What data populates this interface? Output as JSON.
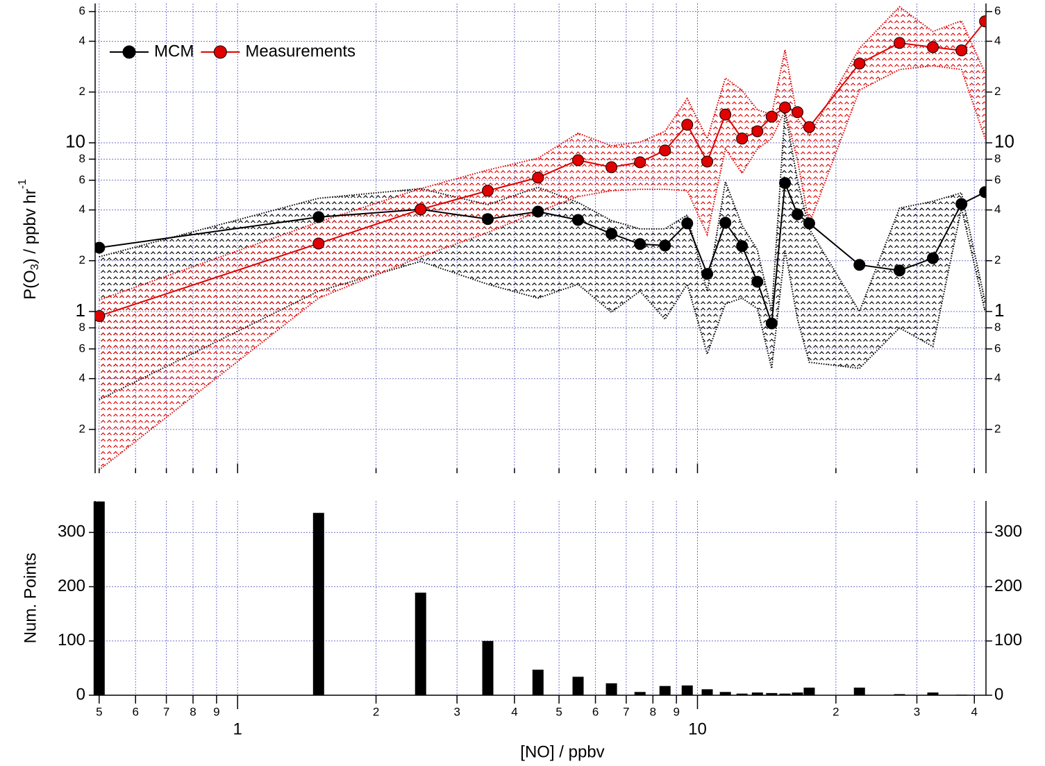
{
  "chart_data": [
    {
      "type": "line",
      "y_label_parts": [
        "P(O",
        "3",
        ") / ppbv hr",
        "-1"
      ],
      "log_x": true,
      "log_y": true,
      "grid": true,
      "legend": "top-left",
      "xlim": [
        0.49,
        42.4
      ],
      "ylim": [
        0.11,
        67
      ],
      "yticks": [
        {
          "value": 0.2,
          "label": "2"
        },
        {
          "value": 0.4,
          "label": "4"
        },
        {
          "value": 0.6,
          "label": "6"
        },
        {
          "value": 0.8,
          "label": "8"
        },
        1,
        2,
        4,
        6,
        8,
        10,
        {
          "value": 20,
          "label": "2"
        },
        {
          "value": 40,
          "label": "4"
        },
        {
          "value": 60,
          "label": "6"
        }
      ],
      "x": [
        0.5,
        1.5,
        2.5,
        3.5,
        4.5,
        5.5,
        6.5,
        7.5,
        8.5,
        9.5,
        10.5,
        11.5,
        12.5,
        13.5,
        14.5,
        15.5,
        16.5,
        17.5,
        22.5,
        27.5,
        32.5,
        37.5,
        42.2
      ],
      "series": [
        {
          "name": "MCM",
          "color": "#000000",
          "values": [
            2.39,
            3.63,
            4.03,
            3.53,
            3.91,
            3.49,
            2.89,
            2.51,
            2.46,
            3.33,
            1.67,
            3.36,
            2.44,
            1.5,
            0.85,
            5.77,
            3.77,
            3.33,
            1.89,
            1.75,
            2.07,
            4.34,
            5.1
          ],
          "upper": [
            2.11,
            4.69,
            5.35,
            4.3,
            5.45,
            4.43,
            3.46,
            3.09,
            3.09,
            3.73,
            1.32,
            5.88,
            3.24,
            2.32,
            1.0,
            15.4,
            5.99,
            3.09,
            1.0,
            4.1,
            4.5,
            5.05,
            1.15
          ],
          "lower": [
            0.3,
            1.32,
            1.98,
            1.45,
            1.2,
            1.45,
            0.99,
            1.32,
            0.9,
            1.45,
            0.56,
            1.11,
            1.2,
            1.04,
            0.46,
            2.32,
            0.9,
            0.5,
            0.46,
            0.8,
            0.62,
            4.1,
            1.0
          ]
        },
        {
          "name": "Measurements",
          "color": "#e00000",
          "values": [
            0.94,
            2.53,
            4.03,
            5.2,
            6.22,
            7.89,
            7.17,
            7.67,
            9.01,
            12.8,
            7.74,
            14.7,
            10.6,
            11.7,
            14.3,
            16.2,
            15.2,
            12.4,
            29.5,
            39.1,
            36.9,
            35.3,
            52.5
          ],
          "upper": [
            1.17,
            3.39,
            5.35,
            6.9,
            8.1,
            11.4,
            9.6,
            10.1,
            11.7,
            18.3,
            10.6,
            24.2,
            20.5,
            15.7,
            14.7,
            35.6,
            14.0,
            11.1,
            36.3,
            64,
            45.7,
            52.9,
            26
          ],
          "lower": [
            0.115,
            1.2,
            2.11,
            2.94,
            3.91,
            4.8,
            5.2,
            5.3,
            5.3,
            5.2,
            2.86,
            9.2,
            6.6,
            9.2,
            10.6,
            15.5,
            7.9,
            3.3,
            20.5,
            27.2,
            28.6,
            27.2,
            10.6
          ]
        }
      ]
    },
    {
      "type": "bar",
      "x_label": "[NO] / ppbv",
      "y_label": "Num. Points",
      "log_x": true,
      "grid": true,
      "color": "#000000",
      "xlim": [
        0.49,
        42.4
      ],
      "xticks": [
        {
          "value": 0.5,
          "label": "5"
        },
        {
          "value": 0.6,
          "label": "6"
        },
        {
          "value": 0.7,
          "label": "7"
        },
        {
          "value": 0.8,
          "label": "8"
        },
        {
          "value": 0.9,
          "label": "9"
        },
        1,
        2,
        3,
        4,
        5,
        6,
        7,
        8,
        9,
        10,
        {
          "value": 20,
          "label": "2"
        },
        {
          "value": 30,
          "label": "3"
        },
        {
          "value": 40,
          "label": "4"
        }
      ],
      "ylim": [
        0,
        358
      ],
      "yticks": [
        0,
        100,
        200,
        300
      ],
      "x": [
        0.5,
        1.5,
        2.5,
        3.5,
        4.5,
        5.5,
        6.5,
        7.5,
        8.5,
        9.5,
        10.5,
        11.5,
        12.5,
        13.5,
        14.5,
        15.5,
        16.5,
        17.5,
        22.5,
        27.5,
        32.5,
        37.5,
        42.2
      ],
      "values": [
        357,
        336,
        189,
        100,
        47,
        34,
        22,
        6,
        17,
        18,
        11,
        6,
        3,
        5,
        4,
        3,
        5,
        14,
        14,
        2,
        5,
        1,
        0
      ]
    }
  ]
}
